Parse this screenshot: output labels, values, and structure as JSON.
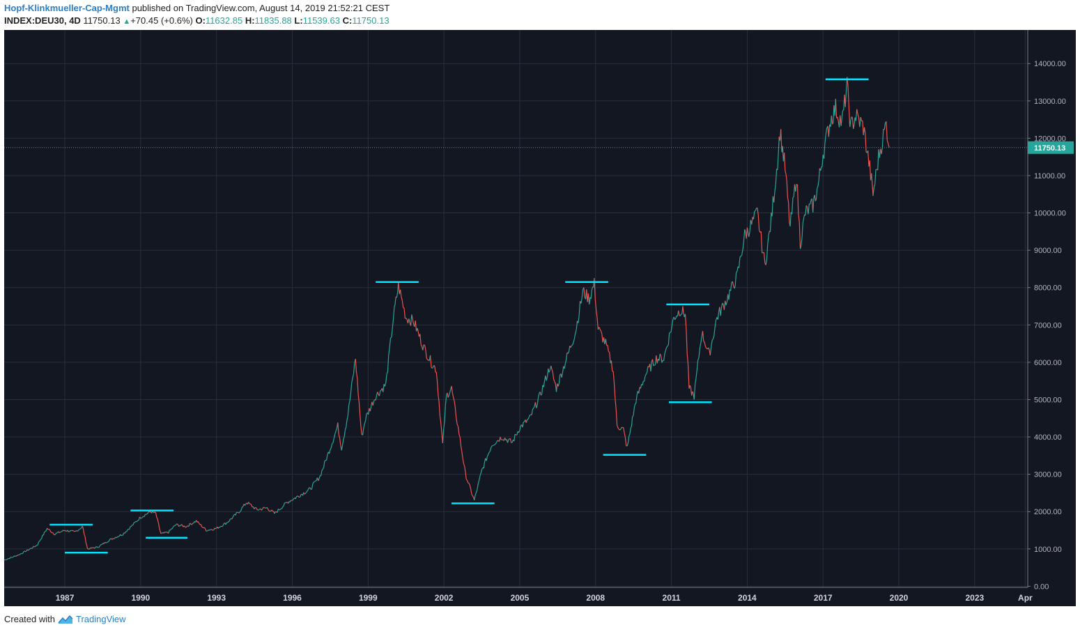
{
  "header": {
    "author": "Hopf-Klinkmueller-Cap-Mgmt",
    "published": "published on TradingView.com, August 14, 2019 21:52:21 CEST",
    "symbol": "INDEX:DEU30, 4D",
    "last": "11750.13",
    "change": "+70.45 (+0.6%)",
    "open_label": "O:",
    "open": "11632.85",
    "high_label": "H:",
    "high": "11835.88",
    "low_label": "L:",
    "low": "11539.63",
    "close_label": "C:",
    "close": "11750.13"
  },
  "footer": {
    "created_with": "Created with",
    "brand": "TradingView"
  },
  "colors": {
    "background": "#131722",
    "grid": "#2a2e39",
    "up": "#26a69a",
    "down": "#ef5350",
    "level": "#00e5ff"
  },
  "chart_data": {
    "type": "line",
    "symbol": "INDEX:DEU30",
    "xlim": [
      1984.6,
      2025.1
    ],
    "ylim": [
      -30,
      14900
    ],
    "y_ticks": [
      "0.00",
      "1000.00",
      "2000.00",
      "3000.00",
      "4000.00",
      "5000.00",
      "6000.00",
      "7000.00",
      "8000.00",
      "9000.00",
      "10000.00",
      "11000.00",
      "12000.00",
      "13000.00",
      "14000.00"
    ],
    "x_ticks": [
      {
        "x": 1987,
        "label": "1987"
      },
      {
        "x": 1990,
        "label": "1990"
      },
      {
        "x": 1993,
        "label": "1993"
      },
      {
        "x": 1996,
        "label": "1996"
      },
      {
        "x": 1999,
        "label": "1999"
      },
      {
        "x": 2002,
        "label": "2002"
      },
      {
        "x": 2005,
        "label": "2005"
      },
      {
        "x": 2008,
        "label": "2008"
      },
      {
        "x": 2011,
        "label": "2011"
      },
      {
        "x": 2014,
        "label": "2014"
      },
      {
        "x": 2017,
        "label": "2017"
      },
      {
        "x": 2020,
        "label": "2020"
      },
      {
        "x": 2023,
        "label": "2023"
      },
      {
        "x": 2025.0,
        "label": "Apr"
      }
    ],
    "last_price": 11750.13,
    "last_price_label": "11750.13",
    "price_path": [
      [
        1984.6,
        700
      ],
      [
        1985.2,
        850
      ],
      [
        1985.9,
        1100
      ],
      [
        1986.3,
        1550
      ],
      [
        1986.6,
        1400
      ],
      [
        1987.0,
        1500
      ],
      [
        1987.4,
        1450
      ],
      [
        1987.7,
        1600
      ],
      [
        1987.9,
        1000
      ],
      [
        1988.3,
        1050
      ],
      [
        1988.8,
        1250
      ],
      [
        1989.3,
        1400
      ],
      [
        1989.7,
        1650
      ],
      [
        1990.0,
        1850
      ],
      [
        1990.4,
        2000
      ],
      [
        1990.6,
        1950
      ],
      [
        1990.8,
        1400
      ],
      [
        1991.1,
        1450
      ],
      [
        1991.4,
        1650
      ],
      [
        1991.8,
        1600
      ],
      [
        1992.2,
        1750
      ],
      [
        1992.6,
        1500
      ],
      [
        1993.0,
        1550
      ],
      [
        1993.4,
        1700
      ],
      [
        1993.9,
        2000
      ],
      [
        1994.2,
        2250
      ],
      [
        1994.6,
        2050
      ],
      [
        1995.0,
        2100
      ],
      [
        1995.3,
        1950
      ],
      [
        1995.8,
        2250
      ],
      [
        1996.2,
        2400
      ],
      [
        1996.7,
        2600
      ],
      [
        1997.1,
        2950
      ],
      [
        1997.5,
        3700
      ],
      [
        1997.8,
        4300
      ],
      [
        1997.95,
        3700
      ],
      [
        1998.2,
        4600
      ],
      [
        1998.5,
        6100
      ],
      [
        1998.75,
        4000
      ],
      [
        1998.9,
        4500
      ],
      [
        1999.3,
        5100
      ],
      [
        1999.7,
        5400
      ],
      [
        2000.0,
        7200
      ],
      [
        2000.2,
        8050
      ],
      [
        2000.5,
        7200
      ],
      [
        2000.8,
        7100
      ],
      [
        2001.2,
        6400
      ],
      [
        2001.5,
        6000
      ],
      [
        2001.7,
        5800
      ],
      [
        2001.95,
        3800
      ],
      [
        2002.1,
        5100
      ],
      [
        2002.3,
        5300
      ],
      [
        2002.6,
        4100
      ],
      [
        2002.85,
        3000
      ],
      [
        2003.2,
        2300
      ],
      [
        2003.5,
        3100
      ],
      [
        2003.9,
        3800
      ],
      [
        2004.3,
        4000
      ],
      [
        2004.7,
        3850
      ],
      [
        2005.0,
        4250
      ],
      [
        2005.4,
        4500
      ],
      [
        2005.8,
        5100
      ],
      [
        2006.2,
        5900
      ],
      [
        2006.45,
        5300
      ],
      [
        2006.8,
        6000
      ],
      [
        2007.2,
        6800
      ],
      [
        2007.5,
        7900
      ],
      [
        2007.75,
        7700
      ],
      [
        2007.95,
        8100
      ],
      [
        2008.1,
        6900
      ],
      [
        2008.4,
        6500
      ],
      [
        2008.7,
        5800
      ],
      [
        2008.85,
        4300
      ],
      [
        2009.1,
        4200
      ],
      [
        2009.25,
        3700
      ],
      [
        2009.6,
        5000
      ],
      [
        2010.0,
        5700
      ],
      [
        2010.4,
        6100
      ],
      [
        2010.7,
        6100
      ],
      [
        2011.1,
        7200
      ],
      [
        2011.35,
        7400
      ],
      [
        2011.55,
        7300
      ],
      [
        2011.7,
        5300
      ],
      [
        2011.9,
        5100
      ],
      [
        2012.2,
        6800
      ],
      [
        2012.5,
        6200
      ],
      [
        2012.8,
        7200
      ],
      [
        2013.2,
        7700
      ],
      [
        2013.6,
        8300
      ],
      [
        2013.9,
        9400
      ],
      [
        2014.1,
        9600
      ],
      [
        2014.4,
        10000
      ],
      [
        2014.7,
        8600
      ],
      [
        2014.95,
        9800
      ],
      [
        2015.2,
        11400
      ],
      [
        2015.3,
        12200
      ],
      [
        2015.5,
        11200
      ],
      [
        2015.7,
        9600
      ],
      [
        2015.95,
        11000
      ],
      [
        2016.1,
        9200
      ],
      [
        2016.3,
        10000
      ],
      [
        2016.6,
        10200
      ],
      [
        2016.8,
        10700
      ],
      [
        2017.0,
        11600
      ],
      [
        2017.3,
        12500
      ],
      [
        2017.5,
        12800
      ],
      [
        2017.75,
        12400
      ],
      [
        2017.95,
        13400
      ],
      [
        2018.1,
        12300
      ],
      [
        2018.3,
        12600
      ],
      [
        2018.6,
        12300
      ],
      [
        2018.85,
        11200
      ],
      [
        2018.98,
        10500
      ],
      [
        2019.2,
        11500
      ],
      [
        2019.5,
        12400
      ],
      [
        2019.62,
        11750
      ]
    ],
    "levels": [
      {
        "y": 1650,
        "x1": 1986.4,
        "x2": 1988.1
      },
      {
        "y": 900,
        "x1": 1987.0,
        "x2": 1988.7
      },
      {
        "y": 2030,
        "x1": 1989.6,
        "x2": 1991.3
      },
      {
        "y": 1300,
        "x1": 1990.2,
        "x2": 1991.85
      },
      {
        "y": 8150,
        "x1": 1999.3,
        "x2": 2001.0
      },
      {
        "y": 2220,
        "x1": 2002.3,
        "x2": 2004.0
      },
      {
        "y": 8150,
        "x1": 2006.8,
        "x2": 2008.5
      },
      {
        "y": 3520,
        "x1": 2008.3,
        "x2": 2010.0
      },
      {
        "y": 7550,
        "x1": 2010.8,
        "x2": 2012.5
      },
      {
        "y": 4930,
        "x1": 2010.9,
        "x2": 2012.6
      },
      {
        "y": 13580,
        "x1": 2017.1,
        "x2": 2018.8
      }
    ]
  }
}
